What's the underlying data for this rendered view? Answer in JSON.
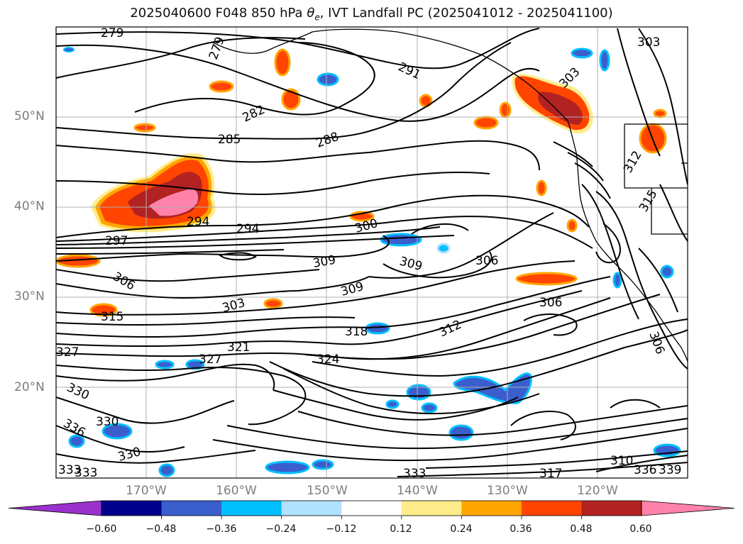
{
  "title": "2025040600 F048 850 hPa θe, IVT Landfall PC (2025041012 - 2025041100)",
  "map": {
    "lat_labels": [
      "50°N",
      "40°N",
      "30°N",
      "20°N"
    ],
    "lon_labels": [
      "170°W",
      "160°W",
      "150°W",
      "140°W",
      "130°W",
      "120°W"
    ],
    "contour_labels": [
      "279",
      "279",
      "282",
      "285",
      "288",
      "291",
      "294",
      "294",
      "297",
      "300",
      "303",
      "303",
      "303",
      "306",
      "306",
      "306",
      "309",
      "309",
      "309",
      "312",
      "312",
      "315",
      "318",
      "321",
      "324",
      "327",
      "327",
      "330",
      "330",
      "330",
      "333",
      "333",
      "333",
      "336",
      "336",
      "339",
      "310",
      "315",
      "317",
      "306"
    ],
    "line_color": "#000000",
    "grid_color": "#b0b0b0"
  },
  "colorbar": {
    "colors": [
      "#9932CC",
      "#00008B",
      "#3A5FCD",
      "#00BFFF",
      "#B0E2FF",
      "#FFFFFF",
      "#FFEC8B",
      "#FFA500",
      "#FF4500",
      "#B22222",
      "#FF82AB"
    ],
    "tick_labels": [
      "−0.60",
      "−0.48",
      "−0.36",
      "−0.24",
      "−0.12",
      "0.12",
      "0.24",
      "0.36",
      "0.48",
      "0.60"
    ],
    "extend": "both"
  }
}
